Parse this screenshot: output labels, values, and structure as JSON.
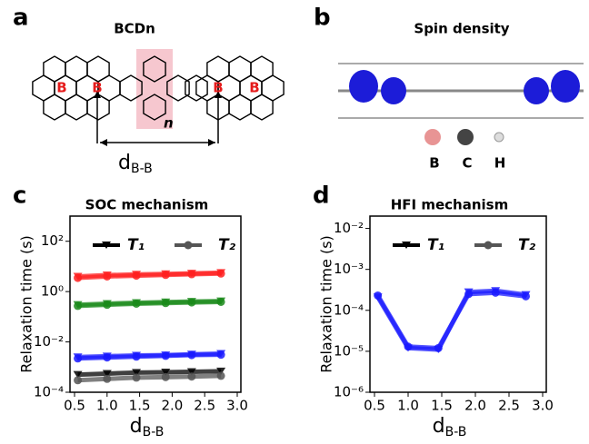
{
  "panels": {
    "a": {
      "label": "a",
      "title": "BCDn",
      "boron": [
        "B",
        "B",
        "B",
        "B"
      ],
      "repeat": "n",
      "distance": {
        "main": "d",
        "sub": "B-B"
      }
    },
    "b": {
      "label": "b",
      "title": "Spin density",
      "atoms": [
        "B",
        "C",
        "H"
      ]
    },
    "c": {
      "label": "c"
    },
    "d": {
      "label": "d"
    }
  },
  "chart_data": [
    {
      "type": "line",
      "title": "SOC mechanism",
      "ylabel": "Relaxation time (s)",
      "xlabel": {
        "main": "d",
        "sub": "B-B"
      },
      "log_y": true,
      "x": [
        0.55,
        1.0,
        1.45,
        1.9,
        2.3,
        2.75
      ],
      "xlim": [
        0.5,
        3.0
      ],
      "xticks": [
        0.5,
        {
          "value": 1.0,
          "label": "1.0"
        },
        1.5,
        {
          "value": 2.0,
          "label": "2.0"
        },
        2.5,
        {
          "value": 3.0,
          "label": "3.0"
        }
      ],
      "ylim": [
        0.0001,
        1000
      ],
      "yticks": [
        {
          "value": 0.0001,
          "label": "10⁻⁴"
        },
        {
          "value": 0.01,
          "label": "10⁻²"
        },
        {
          "value": 1,
          "label": "10⁰"
        },
        {
          "value": 100,
          "label": "10²"
        }
      ],
      "series": [
        {
          "name": "T₁",
          "marker": "triangle",
          "color": "#000000",
          "lines": [
            {
              "color": "#ff2020",
              "values": [
                4,
                4.5,
                4.8,
                5,
                5.3,
                5.6
              ]
            },
            {
              "color": "#1a8a1a",
              "values": [
                0.3,
                0.33,
                0.36,
                0.38,
                0.4,
                0.42
              ]
            },
            {
              "color": "#1a1aff",
              "values": [
                0.0025,
                0.0027,
                0.0029,
                0.003,
                0.0032,
                0.0034
              ]
            },
            {
              "color": "#000000",
              "values": [
                0.0005,
                0.00055,
                0.0006,
                0.00062,
                0.00065,
                0.00068
              ]
            }
          ]
        },
        {
          "name": "T₂",
          "marker": "circle",
          "color": "#555555",
          "lines": [
            {
              "color": "#ff2020",
              "values": [
                3.5,
                4,
                4.3,
                4.6,
                4.9,
                5.2
              ]
            },
            {
              "color": "#1a8a1a",
              "values": [
                0.27,
                0.3,
                0.33,
                0.35,
                0.37,
                0.39
              ]
            },
            {
              "color": "#1a1aff",
              "values": [
                0.0022,
                0.0024,
                0.0026,
                0.0028,
                0.003,
                0.0031
              ]
            },
            {
              "color": "#555555",
              "values": [
                0.0003,
                0.00034,
                0.00038,
                0.0004,
                0.00042,
                0.00045
              ]
            }
          ]
        }
      ]
    },
    {
      "type": "line",
      "title": "HFI mechanism",
      "ylabel": "Relaxation time (s)",
      "xlabel": {
        "main": "d",
        "sub": "B-B"
      },
      "log_y": true,
      "x": [
        0.55,
        1.0,
        1.45,
        1.9,
        2.3,
        2.75
      ],
      "xlim": [
        0.5,
        3.0
      ],
      "xticks": [
        0.5,
        {
          "value": 1.0,
          "label": "1.0"
        },
        1.5,
        {
          "value": 2.0,
          "label": "2.0"
        },
        2.5,
        {
          "value": 3.0,
          "label": "3.0"
        }
      ],
      "ylim": [
        1e-06,
        0.02
      ],
      "yticks": [
        {
          "value": 1e-06,
          "label": "10⁻⁶"
        },
        {
          "value": 1e-05,
          "label": "10⁻⁵"
        },
        {
          "value": 0.0001,
          "label": "10⁻⁴"
        },
        {
          "value": 0.001,
          "label": "10⁻³"
        },
        {
          "value": 0.01,
          "label": "10⁻²"
        }
      ],
      "series": [
        {
          "name": "T₁",
          "marker": "triangle",
          "color": "#000000",
          "lines": [
            {
              "color": "#1a1aff",
              "values": [
                0.00021,
                1.2e-05,
                1.1e-05,
                0.00028,
                0.0003,
                0.00024
              ]
            }
          ]
        },
        {
          "name": "T₂",
          "marker": "circle",
          "color": "#555555",
          "lines": [
            {
              "color": "#1a1aff",
              "values": [
                0.00023,
                1.3e-05,
                1.2e-05,
                0.00025,
                0.00027,
                0.00022
              ]
            }
          ]
        }
      ]
    }
  ]
}
